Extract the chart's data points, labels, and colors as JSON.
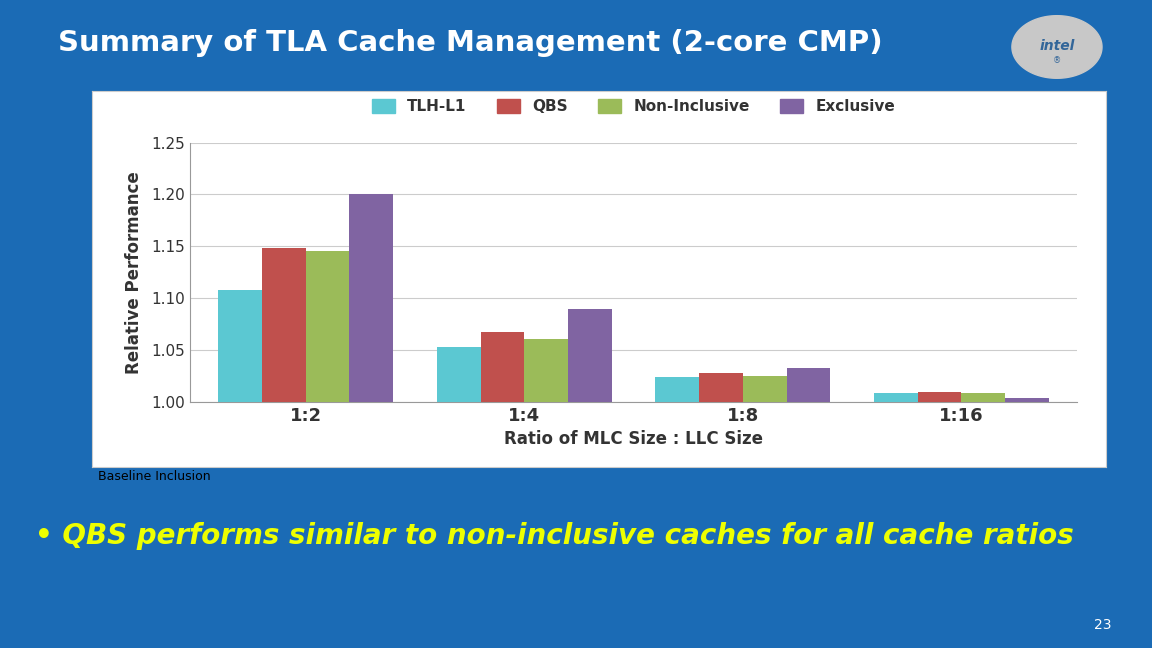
{
  "title": "Summary of TLA Cache Management (2-core CMP)",
  "background_color": "#1B6BB5",
  "chart_bg": "#FFFFFF",
  "categories": [
    "1:2",
    "1:4",
    "1:8",
    "1:16"
  ],
  "series": {
    "TLH-L1": [
      1.108,
      1.053,
      1.024,
      1.008
    ],
    "QBS": [
      1.148,
      1.067,
      1.028,
      1.009
    ],
    "Non-Inclusive": [
      1.145,
      1.061,
      1.025,
      1.008
    ],
    "Exclusive": [
      1.2,
      1.089,
      1.033,
      1.004
    ]
  },
  "colors": {
    "TLH-L1": "#5BC8D2",
    "QBS": "#C0504D",
    "Non-Inclusive": "#9BBB59",
    "Exclusive": "#8064A2"
  },
  "ylabel": "Relative Performance",
  "xlabel": "Ratio of MLC Size : LLC Size",
  "ylim": [
    1.0,
    1.25
  ],
  "yticks": [
    1.0,
    1.05,
    1.1,
    1.15,
    1.2,
    1.25
  ],
  "baseline_text": "Baseline Inclusion",
  "bullet_text": "• QBS performs similar to non-inclusive caches for all cache ratios",
  "page_number": "23",
  "title_color": "#FFFFFF",
  "bullet_color": "#EEFF00",
  "baseline_color": "#000000"
}
